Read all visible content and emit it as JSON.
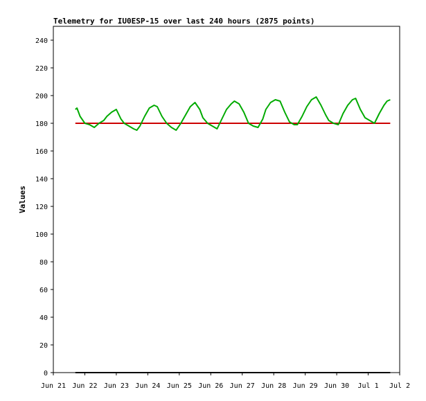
{
  "chart_data": {
    "type": "line",
    "title": "Telemetry for IU0ESP-15 over last 240 hours (2875 points)",
    "xlabel": "",
    "ylabel": "Values",
    "x_ticks": [
      "Jun 21",
      "Jun 22",
      "Jun 23",
      "Jun 24",
      "Jun 25",
      "Jun 26",
      "Jun 27",
      "Jun 28",
      "Jun 29",
      "Jun 30",
      "Jul 1",
      "Jul 2"
    ],
    "x_range_days": [
      21.0,
      32.0
    ],
    "ylim": [
      0,
      250
    ],
    "y_ticks": [
      0,
      20,
      40,
      60,
      80,
      100,
      120,
      140,
      160,
      180,
      200,
      220,
      240
    ],
    "grid": false,
    "legend": "none",
    "series": [
      {
        "color": "#cc0000",
        "style": "line",
        "x": [
          21.7,
          31.7
        ],
        "y": [
          180,
          180
        ]
      },
      {
        "color": "#00aa00",
        "style": "line",
        "x": [
          21.7,
          21.75,
          21.85,
          22.0,
          22.15,
          22.3,
          22.45,
          22.6,
          22.7,
          22.85,
          23.0,
          23.15,
          23.25,
          23.4,
          23.55,
          23.65,
          23.75,
          23.9,
          24.05,
          24.2,
          24.3,
          24.45,
          24.6,
          24.75,
          24.9,
          25.05,
          25.2,
          25.35,
          25.5,
          25.65,
          25.75,
          25.9,
          26.05,
          26.2,
          26.35,
          26.5,
          26.65,
          26.75,
          26.9,
          27.05,
          27.2,
          27.35,
          27.5,
          27.65,
          27.75,
          27.9,
          28.05,
          28.2,
          28.35,
          28.5,
          28.65,
          28.75,
          28.9,
          29.05,
          29.2,
          29.35,
          29.5,
          29.65,
          29.75,
          29.9,
          30.05,
          30.2,
          30.35,
          30.5,
          30.6,
          30.75,
          30.9,
          31.05,
          31.2,
          31.35,
          31.5,
          31.6,
          31.7
        ],
        "y": [
          190,
          191,
          185,
          180,
          179,
          177,
          180,
          182,
          185,
          188,
          190,
          183,
          180,
          178,
          176,
          175,
          178,
          185,
          191,
          193,
          192,
          185,
          180,
          177,
          175,
          180,
          186,
          192,
          195,
          190,
          184,
          180,
          178,
          176,
          183,
          190,
          194,
          196,
          194,
          188,
          180,
          178,
          177,
          183,
          190,
          195,
          197,
          196,
          188,
          181,
          179,
          179,
          185,
          192,
          197,
          199,
          193,
          186,
          182,
          180,
          179,
          187,
          193,
          197,
          198,
          190,
          184,
          182,
          180,
          187,
          193,
          196,
          197
        ]
      },
      {
        "color": "#000000",
        "style": "line",
        "x": [
          21.7,
          31.7
        ],
        "y": [
          0,
          0
        ]
      }
    ]
  }
}
